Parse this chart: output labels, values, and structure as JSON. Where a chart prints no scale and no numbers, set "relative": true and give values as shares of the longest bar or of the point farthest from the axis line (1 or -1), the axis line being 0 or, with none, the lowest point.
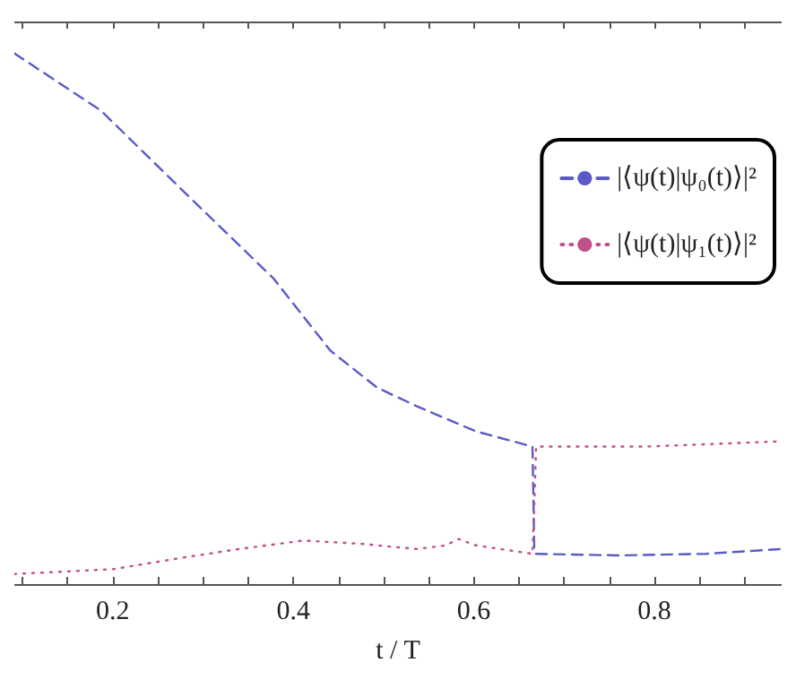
{
  "chart_data": {
    "type": "line",
    "xlabel": "t / T",
    "relative": true,
    "tick_labels": "x",
    "legend": "top right",
    "grid": false,
    "xlim": [
      0.091,
      0.941
    ],
    "xticks": [
      {
        "value": 0.1,
        "label": null
      },
      {
        "value": 0.15,
        "label": null
      },
      0.2,
      {
        "value": 0.25,
        "label": null
      },
      {
        "value": 0.3,
        "label": null
      },
      {
        "value": 0.35,
        "label": null
      },
      0.4,
      {
        "value": 0.45,
        "label": null
      },
      {
        "value": 0.5,
        "label": null
      },
      {
        "value": 0.55,
        "label": null
      },
      0.6,
      {
        "value": 0.65,
        "label": null
      },
      {
        "value": 0.7,
        "label": null
      },
      {
        "value": 0.75,
        "label": null
      },
      0.8,
      {
        "value": 0.85,
        "label": null
      },
      {
        "value": 0.9,
        "label": null
      }
    ],
    "series": [
      {
        "name": "|⟨ψ(t)|ψ₀(t)⟩|²",
        "color": "#5a5ac8",
        "line_style": "dashed",
        "x": [
          0.091,
          0.187,
          0.282,
          0.378,
          0.441,
          0.493,
          0.537,
          0.602,
          0.665,
          0.667,
          0.669,
          0.761,
          0.857,
          0.941
        ],
        "values": [
          1.0,
          0.892,
          0.734,
          0.576,
          0.44,
          0.37,
          0.335,
          0.288,
          0.259,
          0.06,
          0.057,
          0.054,
          0.057,
          0.066
        ]
      },
      {
        "name": "|⟨ψ(t)|ψ₁(t)⟩|²",
        "color": "#c0508a",
        "line_style": "dotted",
        "x": [
          0.091,
          0.2,
          0.282,
          0.34,
          0.411,
          0.474,
          0.537,
          0.569,
          0.583,
          0.602,
          0.665,
          0.667,
          0.669,
          0.79,
          0.941
        ],
        "values": [
          0.019,
          0.028,
          0.051,
          0.066,
          0.082,
          0.076,
          0.066,
          0.073,
          0.085,
          0.073,
          0.057,
          0.15,
          0.259,
          0.259,
          0.269
        ]
      }
    ]
  }
}
